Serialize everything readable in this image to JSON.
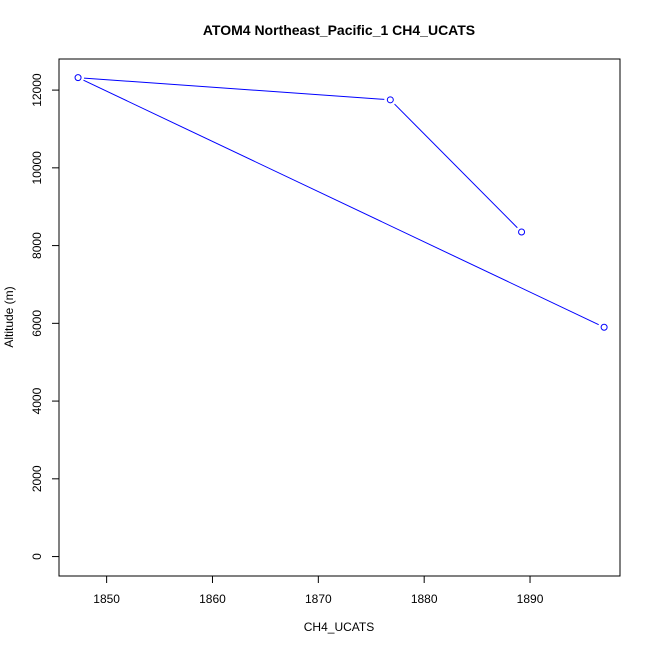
{
  "chart_data": {
    "type": "line",
    "title": "ATOM4 Northeast_Pacific_1 CH4_UCATS",
    "xlabel": "CH4_UCATS",
    "ylabel": "Altitude (m)",
    "xlim": [
      1845.5,
      1898.5
    ],
    "ylim": [
      -500,
      12800
    ],
    "x_ticks": [
      1850,
      1860,
      1870,
      1880,
      1890
    ],
    "y_ticks": [
      0,
      2000,
      4000,
      6000,
      8000,
      10000,
      12000
    ],
    "grid": false,
    "series": [
      {
        "color": "#0000ff",
        "points": [
          {
            "x": 1889.2,
            "y": 8350
          },
          {
            "x": 1876.8,
            "y": 11750
          },
          {
            "x": 1847.3,
            "y": 12320
          },
          {
            "x": 1897.0,
            "y": 5900
          }
        ]
      }
    ]
  }
}
